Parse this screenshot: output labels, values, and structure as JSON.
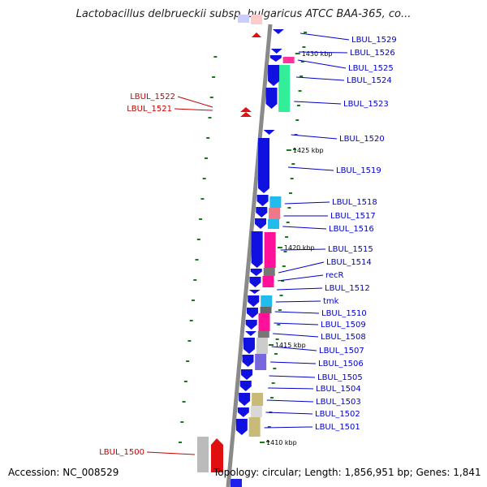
{
  "title": "Lactobacillus delbrueckii subsp. bulgaricus ATCC BAA-365, co...",
  "footer": {
    "accession": "Accession: NC_008529",
    "info": "Topology: circular; Length: 1,856,951 bp; Genes: 1,841"
  },
  "colors": {
    "backbone": "#8a8a8a",
    "forward_gene": "#1010e0",
    "reverse_gene": "#e01010",
    "label_forward": "#0000cc",
    "label_reverse": "#cc0000",
    "tick": "#1a7a1a"
  },
  "kbp_ticks": [
    {
      "label": "1430 kbp",
      "pos": 1430
    },
    {
      "label": "1425 kbp",
      "pos": 1425
    },
    {
      "label": "1420 kbp",
      "pos": 1420
    },
    {
      "label": "1415 kbp",
      "pos": 1415
    },
    {
      "label": "1410 kbp",
      "pos": 1410
    }
  ],
  "forward_genes": [
    {
      "name": "LBUL_1529"
    },
    {
      "name": "LBUL_1526"
    },
    {
      "name": "LBUL_1525"
    },
    {
      "name": "LBUL_1524"
    },
    {
      "name": "LBUL_1523"
    },
    {
      "name": "LBUL_1520"
    },
    {
      "name": "LBUL_1519"
    },
    {
      "name": "LBUL_1518"
    },
    {
      "name": "LBUL_1517"
    },
    {
      "name": "LBUL_1516"
    },
    {
      "name": "LBUL_1515"
    },
    {
      "name": "LBUL_1514"
    },
    {
      "name": "recR"
    },
    {
      "name": "LBUL_1512"
    },
    {
      "name": "tmk"
    },
    {
      "name": "LBUL_1510"
    },
    {
      "name": "LBUL_1509"
    },
    {
      "name": "LBUL_1508"
    },
    {
      "name": "LBUL_1507"
    },
    {
      "name": "LBUL_1506"
    },
    {
      "name": "LBUL_1505"
    },
    {
      "name": "LBUL_1504"
    },
    {
      "name": "LBUL_1503"
    },
    {
      "name": "LBUL_1502"
    },
    {
      "name": "LBUL_1501"
    }
  ],
  "reverse_genes": [
    {
      "name": "LBUL_1522"
    },
    {
      "name": "LBUL_1521"
    },
    {
      "name": "LBUL_1500"
    }
  ]
}
